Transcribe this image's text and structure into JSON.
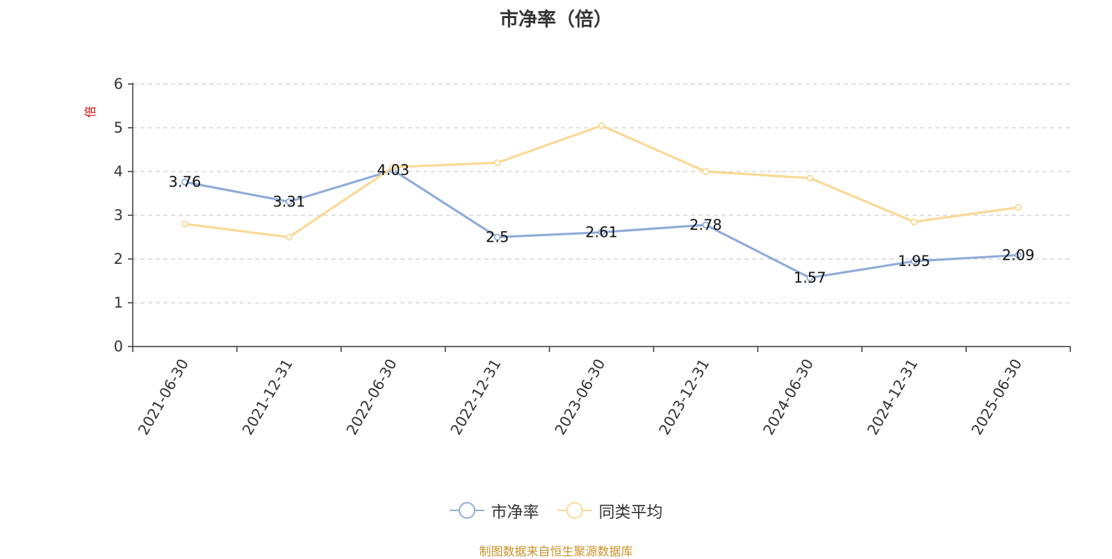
{
  "chart_data": {
    "type": "line",
    "title": "市净率（倍）",
    "ylabel": "倍",
    "xlabel": "",
    "ylim": [
      0,
      6
    ],
    "yticks": [
      0,
      1,
      2,
      3,
      4,
      5,
      6
    ],
    "grid": true,
    "legend_position": "bottom",
    "categories": [
      "2021-06-30",
      "2021-12-31",
      "2022-06-30",
      "2022-12-31",
      "2023-06-30",
      "2023-12-31",
      "2024-06-30",
      "2024-12-31",
      "2025-06-30"
    ],
    "series": [
      {
        "name": "市净率",
        "color": "#8eacd8",
        "show_labels": true,
        "values": [
          3.76,
          3.31,
          4.03,
          2.5,
          2.61,
          2.78,
          1.57,
          1.95,
          2.09
        ]
      },
      {
        "name": "同类平均",
        "color": "#fbd893",
        "show_labels": false,
        "values": [
          2.8,
          2.5,
          4.1,
          4.2,
          5.05,
          4.0,
          3.85,
          2.85,
          3.18
        ]
      }
    ]
  },
  "colors": {
    "unit_label": "#e00000",
    "source_note": "#c9932a",
    "axis": "#333333",
    "grid": "#cccccc"
  },
  "source_note": "制图数据来自恒生聚源数据库"
}
